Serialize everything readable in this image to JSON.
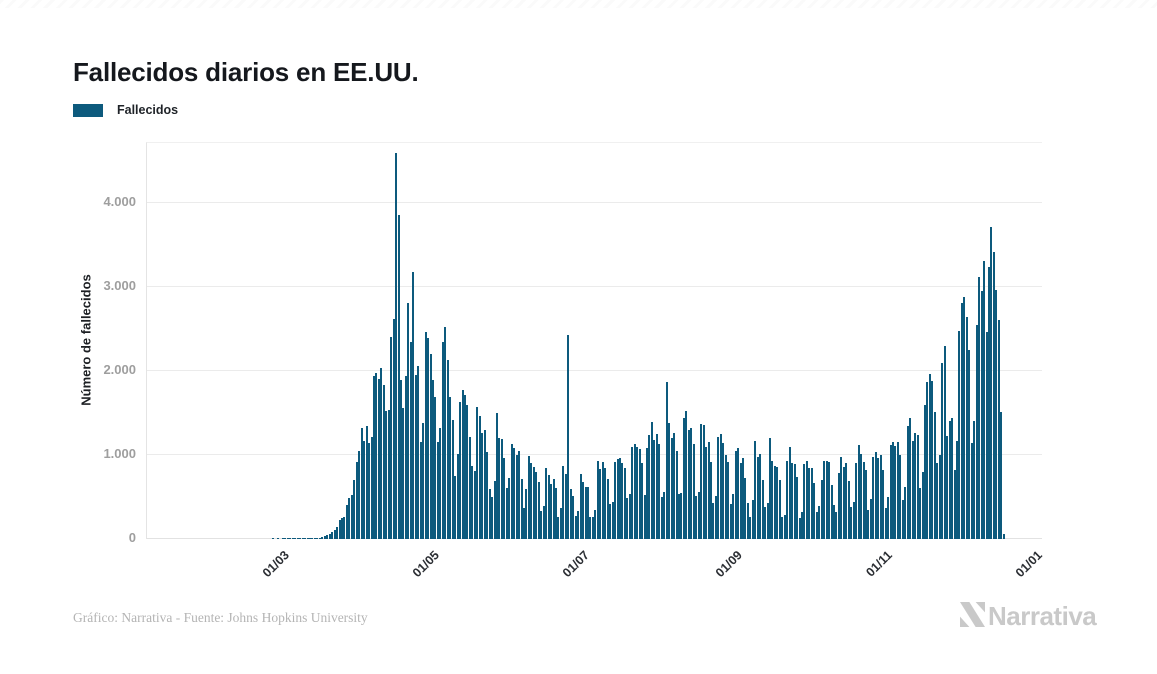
{
  "header": {
    "title": "Fallecidos diarios en EE.UU."
  },
  "legend": {
    "label": "Fallecidos",
    "color": "#0d5a7d"
  },
  "footer": {
    "credit": "Gráfico: Narrativa - Fuente: Johns Hopkins University"
  },
  "brand": {
    "name": "Narrativa"
  },
  "chart_data": {
    "type": "bar",
    "title": "Fallecidos diarios en EE.UU.",
    "series_name": "Fallecidos",
    "ylabel": "Número de fallecidos",
    "bar_color": "#0d5a7d",
    "grid": "horizontal-only",
    "legend_position": "top-left",
    "start_date": "2020-01-22",
    "ylim": [
      0,
      4714
    ],
    "y_ticks": [
      {
        "label": "0",
        "value": 0
      },
      {
        "label": "1.000",
        "value": 1000
      },
      {
        "label": "2.000",
        "value": 2000
      },
      {
        "label": "3.000",
        "value": 3000
      },
      {
        "label": "4.000",
        "value": 4000
      }
    ],
    "x_ticks": [
      {
        "label": "01/03",
        "day": 39
      },
      {
        "label": "01/05",
        "day": 100
      },
      {
        "label": "01/07",
        "day": 161
      },
      {
        "label": "01/09",
        "day": 223
      },
      {
        "label": "01/11",
        "day": 284
      },
      {
        "label": "01/01",
        "day": 345
      }
    ],
    "values": [
      0,
      0,
      0,
      0,
      0,
      0,
      0,
      0,
      0,
      0,
      0,
      0,
      0,
      0,
      0,
      0,
      0,
      0,
      0,
      0,
      0,
      0,
      0,
      0,
      0,
      0,
      0,
      0,
      0,
      0,
      0,
      0,
      0,
      0,
      0,
      1,
      0,
      1,
      0,
      1,
      1,
      4,
      3,
      2,
      4,
      3,
      5,
      4,
      2,
      8,
      6,
      7,
      11,
      16,
      18,
      23,
      41,
      46,
      57,
      80,
      112,
      141,
      225,
      247,
      268,
      400,
      486,
      525,
      700,
      912,
      1049,
      1320,
      1165,
      1340,
      1146,
      1210,
      1940,
      1975,
      1906,
      2035,
      1830,
      1528,
      1535,
      2408,
      2620,
      4591,
      3857,
      1891,
      1561,
      1940,
      2804,
      2341,
      3179,
      1957,
      2065,
      1157,
      1384,
      2470,
      2390,
      2201,
      1897,
      1691,
      1154,
      1324,
      2350,
      2528,
      2129,
      1687,
      1422,
      750,
      1008,
      1630,
      1772,
      1715,
      1595,
      1218,
      865,
      808,
      1568,
      1461,
      1263,
      1293,
      1035,
      592,
      505,
      693,
      1505,
      1199,
      1193,
      960,
      605,
      730,
      1134,
      1083,
      995,
      1045,
      709,
      373,
      596,
      983,
      906,
      861,
      802,
      683,
      330,
      391,
      851,
      763,
      650,
      712,
      604,
      267,
      372,
      875,
      769,
      2425,
      591,
      512,
      277,
      330,
      779,
      684,
      617,
      615,
      268,
      263,
      351,
      930,
      831,
      914,
      849,
      715,
      421,
      435,
      916,
      952,
      963,
      908,
      843,
      493,
      531,
      1093,
      1136,
      1098,
      1073,
      906,
      528,
      1082,
      1240,
      1395,
      1184,
      1249,
      1132,
      506,
      557,
      1870,
      1384,
      1203,
      1266,
      1046,
      531,
      542,
      1440,
      1520,
      1296,
      1326,
      1130,
      510,
      555,
      1370,
      1356,
      1090,
      1160,
      920,
      430,
      512,
      1211,
      1250,
      1148,
      1006,
      920,
      420,
      532,
      1043,
      1083,
      910,
      964,
      721,
      423,
      267,
      459,
      1170,
      972,
      1014,
      697,
      387,
      424,
      1202,
      934,
      870,
      853,
      704,
      258,
      288,
      926,
      1098,
      906,
      891,
      740,
      255,
      323,
      894,
      932,
      847,
      848,
      670,
      318,
      396,
      708,
      930,
      925,
      917,
      641,
      404,
      319,
      786,
      974,
      854,
      902,
      691,
      384,
      436,
      910,
      1115,
      1009,
      922,
      817,
      340,
      477,
      975,
      1033,
      965,
      1001,
      818,
      373,
      495,
      1120,
      1150,
      1108,
      1158,
      1000,
      470,
      620,
      1347,
      1437,
      1170,
      1265,
      1243,
      612,
      794,
      1596,
      1869,
      1962,
      1878,
      1509,
      910,
      995,
      2098,
      2297,
      1232,
      1403,
      1435,
      827,
      1172,
      2473,
      2804,
      2879,
      2637,
      2254,
      1138,
      1404,
      2546,
      3124,
      2956,
      3309,
      2463,
      3240,
      3710,
      3420,
      2960,
      2605,
      1510,
      60
    ]
  }
}
